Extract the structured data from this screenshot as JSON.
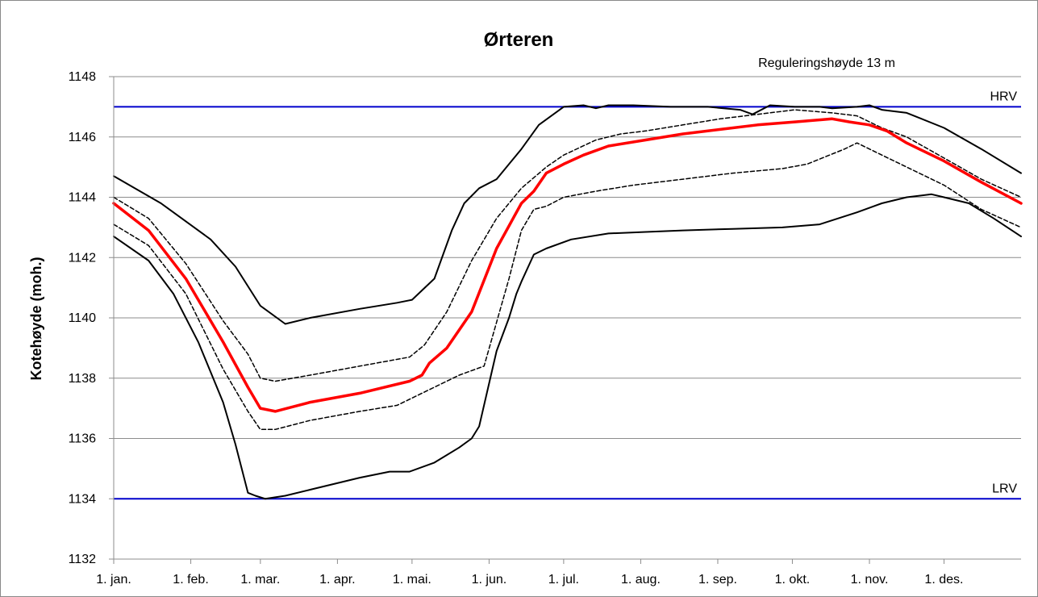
{
  "chart_data": {
    "type": "line",
    "title": "Ørteren",
    "xlabel": "",
    "ylabel": "Kotehøyde (moh.)",
    "annotation": "Reguleringshøyde  13 m",
    "ylim": [
      1132,
      1148
    ],
    "yticks": [
      "1132",
      "1134",
      "1136",
      "1138",
      "1140",
      "1142",
      "1144",
      "1146",
      "1148"
    ],
    "xlim": [
      1,
      366
    ],
    "xticks": [
      {
        "label": "1. jan.",
        "day": 1
      },
      {
        "label": "1. feb.",
        "day": 32
      },
      {
        "label": "1. mar.",
        "day": 60
      },
      {
        "label": "1. apr.",
        "day": 91
      },
      {
        "label": "1. mai.",
        "day": 121
      },
      {
        "label": "1. jun.",
        "day": 152
      },
      {
        "label": "1. jul.",
        "day": 182
      },
      {
        "label": "1. aug.",
        "day": 213
      },
      {
        "label": "1. sep.",
        "day": 244
      },
      {
        "label": "1. okt.",
        "day": 274
      },
      {
        "label": "1. nov.",
        "day": 305
      },
      {
        "label": "1. des.",
        "day": 335
      }
    ],
    "grid": true,
    "hlines": [
      {
        "label": "HRV",
        "y": 1147,
        "color": "#0000cc"
      },
      {
        "label": "LRV",
        "y": 1134,
        "color": "#0000cc"
      }
    ],
    "series": [
      {
        "style": "max",
        "color": "#000000",
        "dashed": false,
        "width": 2,
        "x": [
          1,
          20,
          40,
          50,
          60,
          70,
          80,
          100,
          115,
          121,
          130,
          137,
          142,
          148,
          155,
          165,
          172,
          182,
          190,
          195,
          200,
          210,
          225,
          240,
          253,
          258,
          265,
          275,
          285,
          290,
          300,
          305,
          310,
          320,
          335,
          350,
          366
        ],
        "y": [
          1144.7,
          1143.8,
          1142.6,
          1141.7,
          1140.4,
          1139.8,
          1140.0,
          1140.3,
          1140.5,
          1140.6,
          1141.3,
          1142.9,
          1143.8,
          1144.3,
          1144.6,
          1145.6,
          1146.4,
          1147.0,
          1147.05,
          1146.95,
          1147.05,
          1147.05,
          1147.0,
          1147.0,
          1146.9,
          1146.75,
          1147.05,
          1147.0,
          1147.0,
          1146.95,
          1147.0,
          1147.05,
          1146.9,
          1146.8,
          1146.3,
          1145.6,
          1144.8
        ]
      },
      {
        "style": "upper",
        "color": "#000000",
        "dashed": true,
        "width": 1.5,
        "x": [
          1,
          15,
          30,
          45,
          55,
          60,
          66,
          80,
          100,
          120,
          126,
          135,
          145,
          155,
          165,
          175,
          182,
          195,
          205,
          215,
          230,
          245,
          260,
          275,
          290,
          300,
          310,
          320,
          335,
          350,
          366
        ],
        "y": [
          1144.0,
          1143.3,
          1141.8,
          1139.9,
          1138.8,
          1138.0,
          1137.9,
          1138.1,
          1138.4,
          1138.7,
          1139.1,
          1140.2,
          1141.9,
          1143.3,
          1144.3,
          1145.0,
          1145.4,
          1145.9,
          1146.1,
          1146.2,
          1146.4,
          1146.6,
          1146.75,
          1146.9,
          1146.8,
          1146.7,
          1146.3,
          1146.0,
          1145.3,
          1144.6,
          1144.0
        ]
      },
      {
        "style": "median",
        "color": "#ff0000",
        "dashed": false,
        "width": 3.5,
        "x": [
          1,
          15,
          30,
          45,
          55,
          60,
          66,
          80,
          100,
          120,
          125,
          128,
          135,
          145,
          155,
          165,
          170,
          175,
          182,
          190,
          200,
          215,
          230,
          245,
          260,
          275,
          290,
          297,
          305,
          312,
          320,
          335,
          350,
          366
        ],
        "y": [
          1143.8,
          1142.9,
          1141.3,
          1139.2,
          1137.7,
          1137.0,
          1136.9,
          1137.2,
          1137.5,
          1137.9,
          1138.1,
          1138.5,
          1139.0,
          1140.2,
          1142.3,
          1143.8,
          1144.2,
          1144.8,
          1145.1,
          1145.4,
          1145.7,
          1145.9,
          1146.1,
          1146.25,
          1146.4,
          1146.5,
          1146.6,
          1146.5,
          1146.4,
          1146.2,
          1145.8,
          1145.2,
          1144.5,
          1143.8
        ]
      },
      {
        "style": "lower",
        "color": "#000000",
        "dashed": true,
        "width": 1.5,
        "x": [
          1,
          15,
          30,
          45,
          55,
          60,
          66,
          80,
          100,
          115,
          125,
          140,
          150,
          160,
          165,
          170,
          175,
          182,
          195,
          210,
          230,
          250,
          270,
          280,
          295,
          300,
          310,
          320,
          335,
          350,
          366
        ],
        "y": [
          1143.1,
          1142.4,
          1140.8,
          1138.3,
          1136.9,
          1136.3,
          1136.3,
          1136.6,
          1136.9,
          1137.1,
          1137.5,
          1138.1,
          1138.4,
          1141.3,
          1142.9,
          1143.6,
          1143.7,
          1144.0,
          1144.2,
          1144.4,
          1144.6,
          1144.8,
          1144.95,
          1145.1,
          1145.6,
          1145.8,
          1145.4,
          1145.0,
          1144.4,
          1143.6,
          1143.0
        ]
      },
      {
        "style": "min",
        "color": "#000000",
        "dashed": false,
        "width": 2,
        "x": [
          1,
          15,
          25,
          35,
          45,
          50,
          55,
          58,
          62,
          70,
          80,
          100,
          112,
          120,
          130,
          140,
          145,
          148,
          155,
          160,
          163,
          165,
          170,
          175,
          185,
          200,
          215,
          230,
          250,
          270,
          285,
          300,
          310,
          320,
          330,
          335,
          345,
          355,
          366
        ],
        "y": [
          1142.7,
          1141.9,
          1140.8,
          1139.2,
          1137.2,
          1135.8,
          1134.2,
          1134.1,
          1134.0,
          1134.1,
          1134.3,
          1134.7,
          1134.9,
          1134.9,
          1135.2,
          1135.7,
          1136.0,
          1136.4,
          1138.9,
          1140.0,
          1140.8,
          1141.2,
          1142.1,
          1142.3,
          1142.6,
          1142.8,
          1142.85,
          1142.9,
          1142.95,
          1143.0,
          1143.1,
          1143.5,
          1143.8,
          1144.0,
          1144.1,
          1144.0,
          1143.8,
          1143.3,
          1142.7
        ]
      }
    ]
  }
}
